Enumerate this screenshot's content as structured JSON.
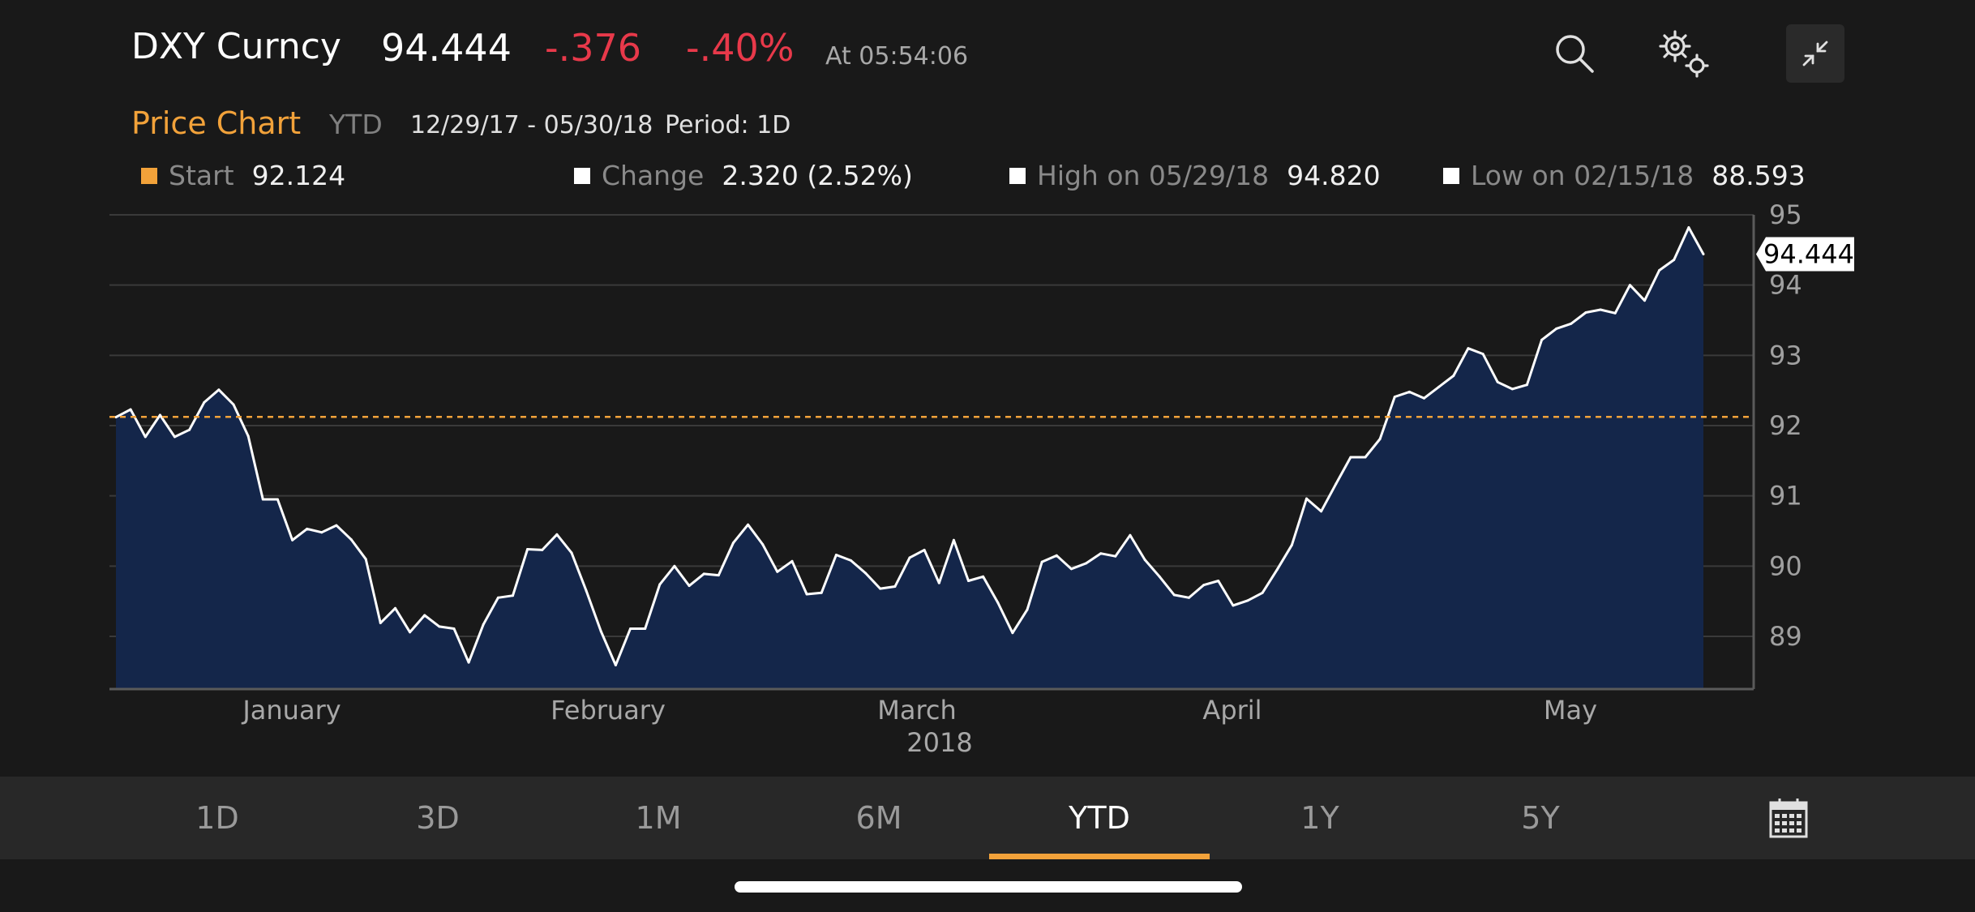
{
  "header": {
    "ticker": "DXY Curncy",
    "price": "94.444",
    "change": "-.376",
    "change_pct": "-.40%",
    "as_of": "At 05:54:06"
  },
  "subheader": {
    "title": "Price Chart",
    "mode": "YTD",
    "range": "12/29/17 - 05/30/18",
    "period": "Period: 1D"
  },
  "stats": [
    {
      "label": "Start",
      "value": "92.124",
      "color": "#f2a23a"
    },
    {
      "label": "Change",
      "value": "2.320 (2.52%)",
      "color": "#ffffff"
    },
    {
      "label": "High on 05/29/18",
      "value": "94.820",
      "color": "#ffffff"
    },
    {
      "label": "Low on 02/15/18",
      "value": "88.593",
      "color": "#ffffff"
    }
  ],
  "tabs": [
    "1D",
    "3D",
    "1M",
    "6M",
    "YTD",
    "1Y",
    "5Y"
  ],
  "active_tab": "YTD",
  "icons": {
    "search": "search-icon",
    "settings": "gears-icon",
    "minimize": "collapse-arrows-icon",
    "calendar": "calendar-icon"
  },
  "chart_data": {
    "type": "area",
    "ylim": [
      88.25,
      95
    ],
    "yticks": [
      89,
      90,
      91,
      92,
      93,
      94,
      95
    ],
    "xlabels": [
      "January",
      "February",
      "March",
      "April",
      "May"
    ],
    "year_label": "2018",
    "start_value": 92.124,
    "last_value_label": "94.444",
    "line_color": "#ffffff",
    "fill_color": "#14264a",
    "reference_color": "#f2a23a",
    "values": [
      92.12,
      92.23,
      91.84,
      92.15,
      91.84,
      91.94,
      92.33,
      92.51,
      92.3,
      91.85,
      90.95,
      90.95,
      90.37,
      90.53,
      90.48,
      90.58,
      90.38,
      90.1,
      89.19,
      89.4,
      89.06,
      89.3,
      89.14,
      89.11,
      88.63,
      89.17,
      89.55,
      89.58,
      90.24,
      90.23,
      90.45,
      90.19,
      89.65,
      89.07,
      88.59,
      89.11,
      89.11,
      89.74,
      90.0,
      89.72,
      89.89,
      89.87,
      90.33,
      90.59,
      90.31,
      89.92,
      90.07,
      89.6,
      89.62,
      90.16,
      90.08,
      89.9,
      89.68,
      89.71,
      90.12,
      90.23,
      89.76,
      90.37,
      89.79,
      89.85,
      89.48,
      89.05,
      89.38,
      90.06,
      90.15,
      89.96,
      90.04,
      90.18,
      90.14,
      90.44,
      90.09,
      89.85,
      89.59,
      89.55,
      89.73,
      89.79,
      89.44,
      89.51,
      89.62,
      89.95,
      90.3,
      90.96,
      90.78,
      91.17,
      91.55,
      91.55,
      91.81,
      92.41,
      92.48,
      92.39,
      92.55,
      92.71,
      93.1,
      93.02,
      92.62,
      92.52,
      92.58,
      93.22,
      93.38,
      93.45,
      93.61,
      93.65,
      93.6,
      94.0,
      93.78,
      94.21,
      94.36,
      94.82,
      94.44
    ]
  }
}
